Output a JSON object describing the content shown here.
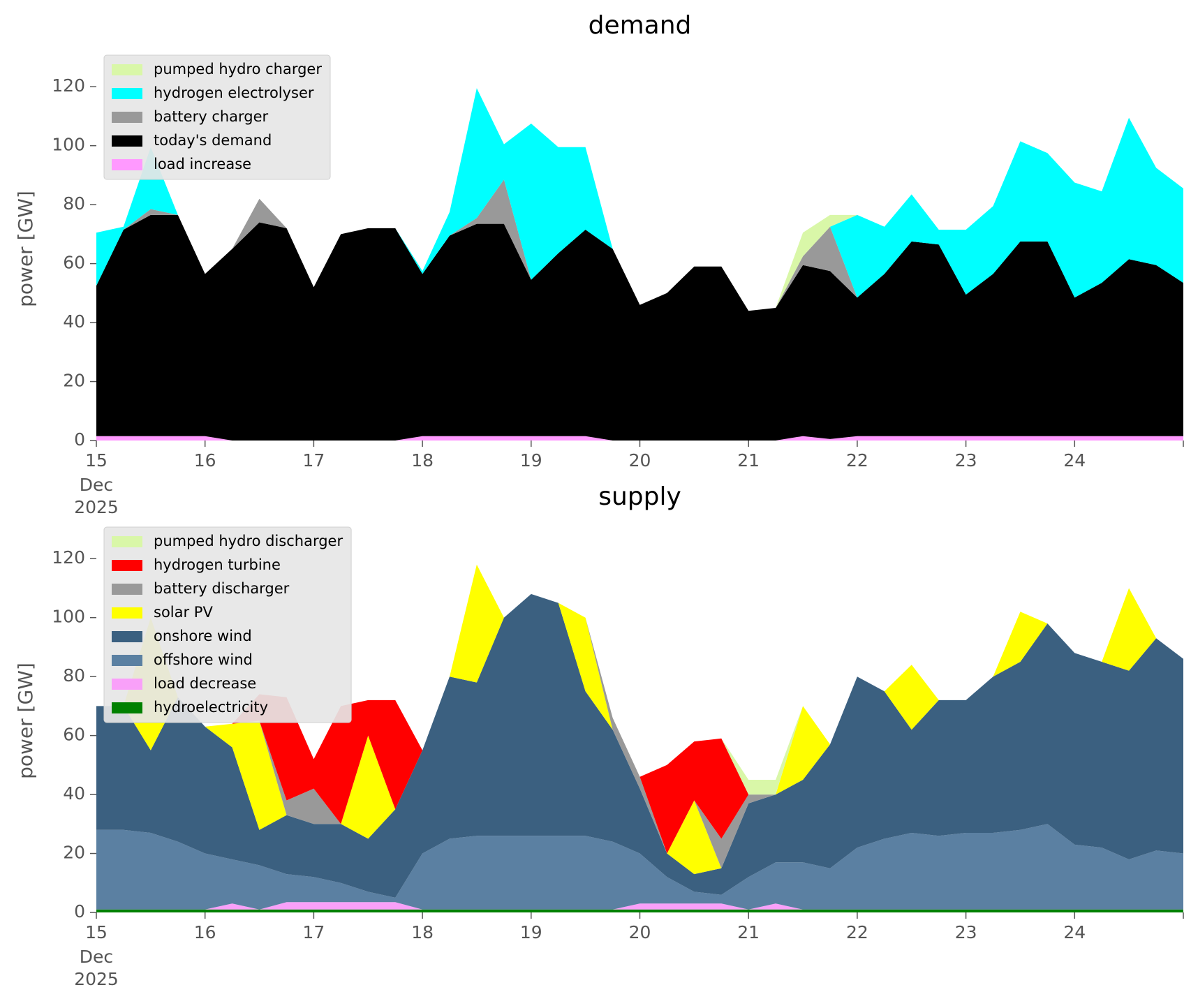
{
  "chart_data": [
    {
      "type": "area",
      "stacked": true,
      "title": "demand",
      "ylabel": "power [GW]",
      "xlim": [
        15,
        25
      ],
      "xticks": [
        15,
        16,
        17,
        18,
        19,
        20,
        21,
        22,
        23,
        24,
        {
          "value": 25,
          "label": null
        }
      ],
      "x_sublabels": [
        "Dec",
        "2025"
      ],
      "ylim": [
        0,
        130
      ],
      "yticks": [
        0,
        20,
        40,
        60,
        80,
        100,
        120
      ],
      "legend": "upper left",
      "x": [
        15,
        15.25,
        15.5,
        15.75,
        16,
        16.25,
        16.5,
        16.75,
        17,
        17.25,
        17.5,
        17.75,
        18,
        18.25,
        18.5,
        18.75,
        19,
        19.25,
        19.5,
        19.75,
        20,
        20.25,
        20.5,
        20.75,
        21,
        21.25,
        21.5,
        21.75,
        22,
        22.25,
        22.5,
        22.75,
        23,
        23.25,
        23.5,
        23.75,
        24,
        24.25,
        24.5,
        24.75,
        25
      ],
      "series": [
        {
          "name": "pumped hydro charger",
          "color": "#d9f7a8",
          "values": [
            0,
            0,
            0,
            0,
            0,
            0,
            0,
            0,
            0,
            0,
            0,
            0,
            0,
            0,
            0,
            0,
            0,
            0,
            0,
            0,
            0,
            0,
            0,
            0,
            0,
            0,
            8,
            4,
            0,
            0,
            0,
            0,
            0,
            0,
            0,
            0,
            0,
            0,
            0,
            0,
            0
          ]
        },
        {
          "name": "hydrogen electrolyser",
          "color": "#00ffff",
          "values": [
            18,
            1,
            21,
            0,
            0,
            0,
            0,
            0,
            0,
            0,
            0,
            0,
            1,
            8,
            44,
            12,
            53,
            36,
            28,
            0,
            0,
            0,
            0,
            0,
            0,
            0,
            0,
            0,
            28,
            16,
            16,
            5,
            22,
            23,
            34,
            30,
            39,
            31,
            48,
            33,
            32
          ]
        },
        {
          "name": "battery charger",
          "color": "#999999",
          "values": [
            0,
            0,
            2,
            0,
            0,
            0,
            8,
            0,
            0,
            0,
            0,
            0,
            0,
            0,
            2,
            15,
            0,
            0,
            0,
            0,
            0,
            0,
            0,
            0,
            0,
            0,
            3,
            15,
            0,
            0,
            0,
            0,
            0,
            0,
            0,
            0,
            0,
            0,
            0,
            0,
            0
          ]
        },
        {
          "name": "today's demand",
          "color": "#000000",
          "values": [
            51,
            70,
            75,
            75,
            55,
            65,
            74,
            72,
            52,
            70,
            72,
            72,
            55,
            68,
            72,
            72,
            53,
            62,
            70,
            65,
            46,
            50,
            59,
            59,
            44,
            45,
            58,
            57,
            47,
            55,
            66,
            65,
            48,
            55,
            66,
            66,
            47,
            52,
            60,
            58,
            52
          ]
        },
        {
          "name": "load increase",
          "color": "#ff99ff",
          "values": [
            1.5,
            1.5,
            1.5,
            1.5,
            1.5,
            0,
            0,
            0,
            0,
            0,
            0,
            0,
            1.5,
            1.5,
            1.5,
            1.5,
            1.5,
            1.5,
            1.5,
            0,
            0,
            0,
            0,
            0,
            0,
            0,
            1.5,
            0.5,
            1.5,
            1.5,
            1.5,
            1.5,
            1.5,
            1.5,
            1.5,
            1.5,
            1.5,
            1.5,
            1.5,
            1.5,
            1.5
          ]
        }
      ]
    },
    {
      "type": "area",
      "stacked": true,
      "title": "supply",
      "ylabel": "power [GW]",
      "xlim": [
        15,
        25
      ],
      "xticks": [
        15,
        16,
        17,
        18,
        19,
        20,
        21,
        22,
        23,
        24,
        {
          "value": 25,
          "label": null
        }
      ],
      "x_sublabels": [
        "Dec",
        "2025"
      ],
      "ylim": [
        0,
        130
      ],
      "yticks": [
        0,
        20,
        40,
        60,
        80,
        100,
        120
      ],
      "legend": "upper left",
      "x": [
        15,
        15.25,
        15.5,
        15.75,
        16,
        16.25,
        16.5,
        16.75,
        17,
        17.25,
        17.5,
        17.75,
        18,
        18.25,
        18.5,
        18.75,
        19,
        19.25,
        19.5,
        19.75,
        20,
        20.25,
        20.5,
        20.75,
        21,
        21.25,
        21.5,
        21.75,
        22,
        22.25,
        22.5,
        22.75,
        23,
        23.25,
        23.5,
        23.75,
        24,
        24.25,
        24.5,
        24.75,
        25
      ],
      "series": [
        {
          "name": "pumped hydro discharger",
          "color": "#d9f7a8",
          "values": [
            0,
            0,
            0,
            0,
            0,
            0,
            0,
            0,
            0,
            0,
            0,
            0,
            0,
            0,
            0,
            0,
            0,
            0,
            0,
            0,
            0,
            0,
            0,
            0,
            5,
            5,
            0,
            0,
            0,
            0,
            0,
            0,
            0,
            0,
            0,
            0,
            0,
            0,
            0,
            0,
            0
          ]
        },
        {
          "name": "hydrogen turbine",
          "color": "#ff0000",
          "values": [
            0,
            0,
            0,
            0,
            0,
            0,
            9,
            35,
            10,
            40,
            12,
            37,
            0,
            0,
            0,
            0,
            0,
            0,
            0,
            0,
            0,
            30,
            20,
            34,
            0,
            0,
            0,
            0,
            0,
            0,
            0,
            0,
            0,
            0,
            0,
            0,
            0,
            0,
            0,
            0,
            0
          ]
        },
        {
          "name": "battery discharger",
          "color": "#999999",
          "values": [
            0,
            0,
            0,
            0,
            0,
            0,
            0,
            5,
            12,
            0,
            0,
            0,
            0,
            0,
            0,
            0,
            0,
            0,
            0,
            4,
            4,
            0,
            0,
            10,
            3,
            0,
            0,
            0,
            0,
            0,
            0,
            0,
            0,
            0,
            0,
            0,
            0,
            0,
            0,
            0,
            0
          ]
        },
        {
          "name": "solar PV",
          "color": "#ffff00",
          "values": [
            0,
            0,
            45,
            0,
            0,
            8,
            37,
            0,
            0,
            0,
            35,
            0,
            0,
            0,
            40,
            0,
            0,
            0,
            25,
            0,
            0,
            0,
            25,
            0,
            0,
            0,
            25,
            0,
            0,
            0,
            22,
            0,
            0,
            0,
            17,
            0,
            0,
            0,
            28,
            0,
            0
          ]
        },
        {
          "name": "onshore wind",
          "color": "#3b6080",
          "values": [
            42,
            42,
            28,
            49,
            43,
            38,
            12,
            20,
            18,
            20,
            18,
            30,
            35,
            55,
            52,
            74,
            82,
            79,
            49,
            38,
            22,
            8,
            6,
            9,
            25,
            23,
            28,
            42,
            58,
            50,
            35,
            46,
            45,
            53,
            57,
            68,
            65,
            63,
            64,
            72,
            66
          ]
        },
        {
          "name": "offshore wind",
          "color": "#5b80a2",
          "values": [
            27,
            27,
            26,
            23,
            19,
            15,
            15,
            9.5,
            8.5,
            6.5,
            3.5,
            1.5,
            19,
            24,
            25,
            25,
            25,
            25,
            25,
            23,
            17,
            9,
            4,
            3,
            11,
            14,
            16,
            14,
            21,
            24,
            26,
            25,
            26,
            26,
            27,
            29,
            22,
            21,
            17,
            20,
            19
          ]
        },
        {
          "name": "load decrease",
          "color": "#f9a0f9",
          "values": [
            0,
            0,
            0,
            0,
            0,
            2,
            0,
            2.5,
            2.5,
            2.5,
            2.5,
            2.5,
            0,
            0,
            0,
            0,
            0,
            0,
            0,
            0,
            2,
            2,
            2,
            2,
            0,
            2,
            0,
            0,
            0,
            0,
            0,
            0,
            0,
            0,
            0,
            0,
            0,
            0,
            0,
            0,
            0
          ]
        },
        {
          "name": "hydroelectricity",
          "color": "#008000",
          "values": [
            1,
            1,
            1,
            1,
            1,
            1,
            1,
            1,
            1,
            1,
            1,
            1,
            1,
            1,
            1,
            1,
            1,
            1,
            1,
            1,
            1,
            1,
            1,
            1,
            1,
            1,
            1,
            1,
            1,
            1,
            1,
            1,
            1,
            1,
            1,
            1,
            1,
            1,
            1,
            1,
            1
          ]
        }
      ]
    }
  ]
}
